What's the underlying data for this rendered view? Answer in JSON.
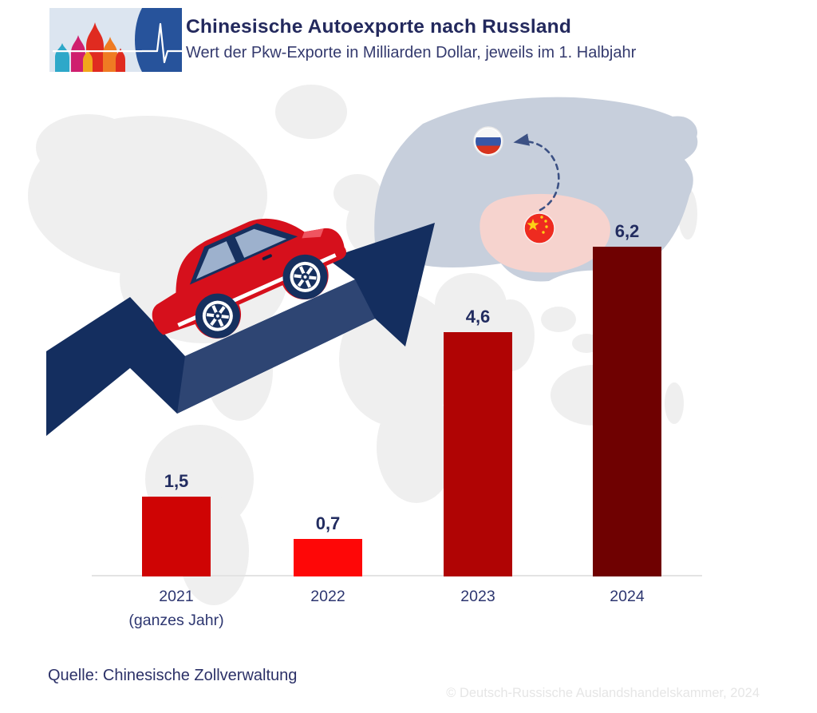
{
  "header": {
    "title": "Chinesische Autoexporte nach Russland",
    "subtitle": "Wert der Pkw-Exporte in Milliarden Dollar, jeweils im 1. Halbjahr"
  },
  "footer": {
    "source": "Quelle: Chinesische Zollverwaltung",
    "copyright": "© Deutsch-Russische Auslandshandelskammer, 2024"
  },
  "chart_data": {
    "type": "bar",
    "title": "Chinesische Autoexporte nach Russland",
    "subtitle": "Wert der Pkw-Exporte in Milliarden Dollar, jeweils im 1. Halbjahr",
    "unit": "Milliarden Dollar",
    "categories": [
      "2021",
      "2022",
      "2023",
      "2024"
    ],
    "category_sublabels": [
      "(ganzes Jahr)",
      "",
      "",
      ""
    ],
    "values": [
      1.5,
      0.7,
      4.6,
      6.2
    ],
    "value_labels": [
      "1,5",
      "0,7",
      "4,6",
      "6,2"
    ],
    "bar_colors": [
      "#cf0404",
      "#fe0707",
      "#b00404",
      "#6f0101"
    ],
    "ylim": [
      0,
      6.6
    ],
    "grid": false,
    "legend": null,
    "source": "Quelle: Chinesische Zollverwaltung"
  },
  "colors": {
    "title_navy": "#23295d",
    "label_navy": "#2d3670",
    "arrow_navy": "#142e5f",
    "arrow_shaft_steel": "#2e4573",
    "map_gray": "#efefef",
    "map_russia": "#c7cfdc",
    "map_china": "#f6d3ce",
    "axis_gray": "#e3e3e3",
    "copyright_gray": "#e6e6e6",
    "logo_blue": "#27539b",
    "logo_light": "#dce5f0"
  },
  "icons": {
    "logo": "dra-cathedral-pulse-logo",
    "world_map": "world-map-background",
    "growth_arrow": "growth-arrow",
    "car": "red-car-illustration",
    "russia_flag": "russia-flag-icon",
    "china_flag": "china-flag-icon",
    "export_route": "dashed-export-arrow-icon"
  }
}
